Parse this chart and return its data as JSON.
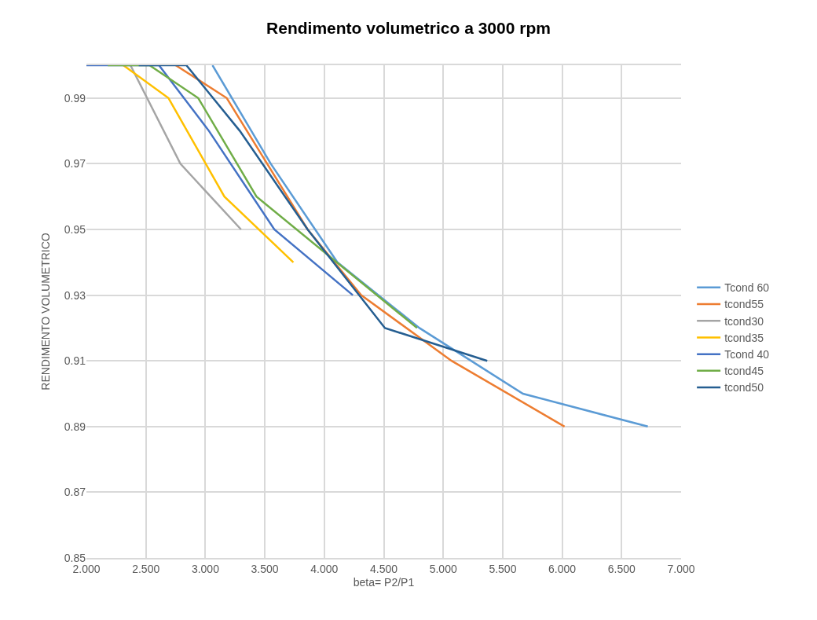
{
  "chart_data": {
    "type": "line",
    "title": "Rendimento volumetrico a 3000 rpm",
    "xlabel": "beta= P2/P1",
    "ylabel": "RENDIMENTO VOLUMETRICO",
    "series": [
      {
        "name": "Tcond 60",
        "color": "#5b9bd5",
        "x": [
          3.06,
          3.55,
          4.11,
          4.8,
          5.67,
          6.72
        ],
        "values": [
          1.0,
          0.97,
          0.94,
          0.92,
          0.9,
          0.89
        ]
      },
      {
        "name": "tcond55",
        "color": "#ed7d31",
        "x": [
          2.75,
          3.18,
          3.86,
          4.31,
          5.07,
          6.02
        ],
        "values": [
          1.0,
          0.99,
          0.95,
          0.93,
          0.91,
          0.89
        ]
      },
      {
        "name": "tcond30",
        "color": "#a5a5a5",
        "x": [
          2.37,
          2.79,
          3.3
        ],
        "values": [
          1.0,
          0.97,
          0.95
        ]
      },
      {
        "name": "tcond35",
        "color": "#ffc000",
        "x": [
          2.31,
          2.69,
          3.16,
          3.74
        ],
        "values": [
          1.0,
          0.99,
          0.96,
          0.94
        ]
      },
      {
        "name": "Tcond 40",
        "color": "#4472c4",
        "x": [
          2.0,
          2.61,
          3.03,
          3.58,
          4.24
        ],
        "values": [
          1.0,
          1.0,
          0.98,
          0.95,
          0.93
        ]
      },
      {
        "name": "tcond45",
        "color": "#70ad47",
        "x": [
          2.18,
          2.53,
          2.94,
          3.43,
          4.78
        ],
        "values": [
          1.0,
          1.0,
          0.99,
          0.96,
          0.92
        ]
      },
      {
        "name": "tcond50",
        "color": "#255e91",
        "x": [
          2.44,
          2.84,
          3.29,
          3.86,
          4.51,
          5.37
        ],
        "values": [
          1.0,
          1.0,
          0.98,
          0.95,
          0.92,
          0.91
        ]
      }
    ],
    "xlim": [
      2.0,
      7.0
    ],
    "xticks": [
      {
        "value": 2.0,
        "label": "2.000"
      },
      {
        "value": 2.5,
        "label": "2.500"
      },
      {
        "value": 3.0,
        "label": "3.000"
      },
      {
        "value": 3.5,
        "label": "3.500"
      },
      {
        "value": 4.0,
        "label": "4.000"
      },
      {
        "value": 4.5,
        "label": "4.500"
      },
      {
        "value": 5.0,
        "label": "5.000"
      },
      {
        "value": 5.5,
        "label": "5.500"
      },
      {
        "value": 6.0,
        "label": "6.000"
      },
      {
        "value": 6.5,
        "label": "6.500"
      },
      {
        "value": 7.0,
        "label": "7.000"
      }
    ],
    "ylim": [
      0.85,
      1.0
    ],
    "yticks": [
      0.85,
      0.87,
      0.89,
      0.91,
      0.93,
      0.95,
      0.97,
      0.99
    ],
    "grid": true,
    "legend": "right",
    "marker": "none",
    "line_style": "solid"
  }
}
